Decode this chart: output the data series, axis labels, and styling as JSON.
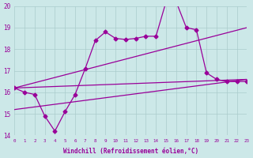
{
  "xlabel": "Windchill (Refroidissement éolien,°C)",
  "bg_color": "#cce8e8",
  "grid_color": "#aacccc",
  "line_color": "#990099",
  "x_min": 0,
  "x_max": 23,
  "y_min": 14,
  "y_max": 20,
  "series1_x": [
    0,
    1,
    2,
    3,
    4,
    5,
    6,
    7,
    8,
    9,
    10,
    11,
    12,
    13,
    14,
    15,
    16,
    17,
    18,
    19,
    20,
    21,
    22,
    23
  ],
  "series1_y": [
    16.2,
    16.0,
    15.9,
    14.9,
    14.2,
    15.1,
    15.9,
    17.1,
    18.4,
    18.8,
    18.5,
    18.45,
    18.5,
    18.6,
    18.6,
    20.2,
    20.2,
    19.0,
    18.9,
    16.9,
    16.6,
    16.5,
    16.5,
    16.5
  ],
  "series2_x": [
    0,
    23
  ],
  "series2_y": [
    16.2,
    19.0
  ],
  "series3_x": [
    0,
    23
  ],
  "series3_y": [
    16.2,
    16.6
  ],
  "series4_x": [
    0,
    23
  ],
  "series4_y": [
    15.2,
    16.6
  ]
}
